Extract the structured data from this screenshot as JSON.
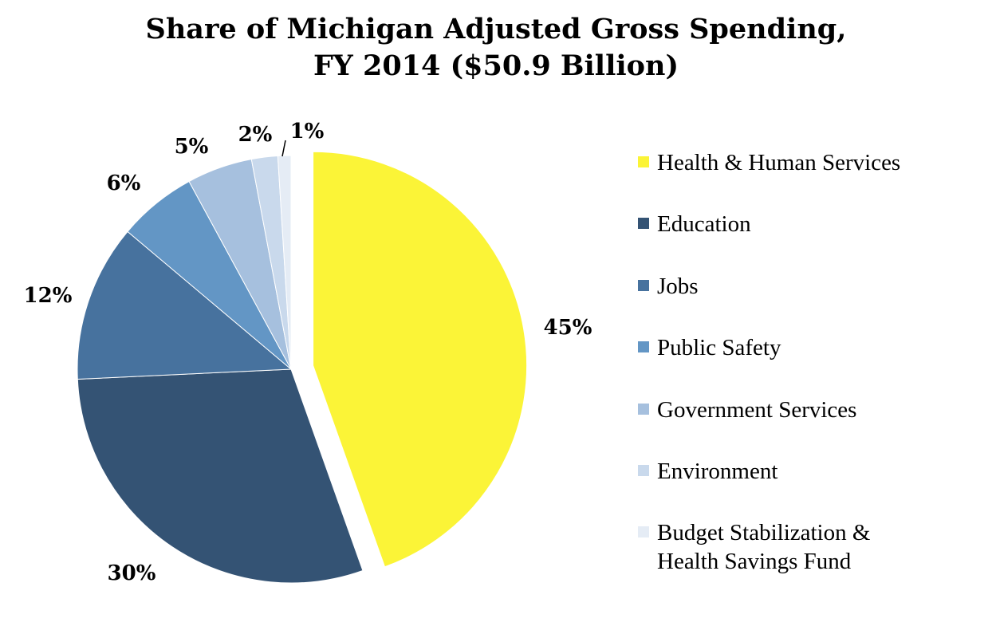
{
  "chart_data": {
    "type": "pie",
    "title": "Share of Michigan Adjusted Gross Spending,",
    "subtitle": "FY 2014 ($50.9 Billion)",
    "legend_position": "right",
    "slices": [
      {
        "label": "Health & Human Services",
        "value": 45,
        "display": "45%",
        "color": "#fbf437"
      },
      {
        "label": "Education",
        "value": 30,
        "display": "30%",
        "color": "#345374"
      },
      {
        "label": "Jobs",
        "value": 12,
        "display": "12%",
        "color": "#47729e"
      },
      {
        "label": "Public Safety",
        "value": 6,
        "display": "6%",
        "color": "#6396c5"
      },
      {
        "label": "Government Services",
        "value": 5,
        "display": "5%",
        "color": "#a6c0de"
      },
      {
        "label": "Environment",
        "value": 2,
        "display": "2%",
        "color": "#c9d9ec"
      },
      {
        "label": "Budget Stabilization & Health Savings Fund",
        "value": 1,
        "display": "1%",
        "color": "#e5ecf5"
      }
    ],
    "legend": [
      {
        "lines": [
          "Health & Human Services"
        ],
        "color": "#fbf437"
      },
      {
        "lines": [
          "Education"
        ],
        "color": "#345374"
      },
      {
        "lines": [
          "Jobs"
        ],
        "color": "#47729e"
      },
      {
        "lines": [
          "Public Safety"
        ],
        "color": "#6396c5"
      },
      {
        "lines": [
          "Government Services"
        ],
        "color": "#a6c0de"
      },
      {
        "lines": [
          "Environment"
        ],
        "color": "#c9d9ec"
      },
      {
        "lines": [
          "Budget Stabilization &",
          "Health Savings Fund"
        ],
        "color": "#e5ecf5"
      }
    ]
  }
}
